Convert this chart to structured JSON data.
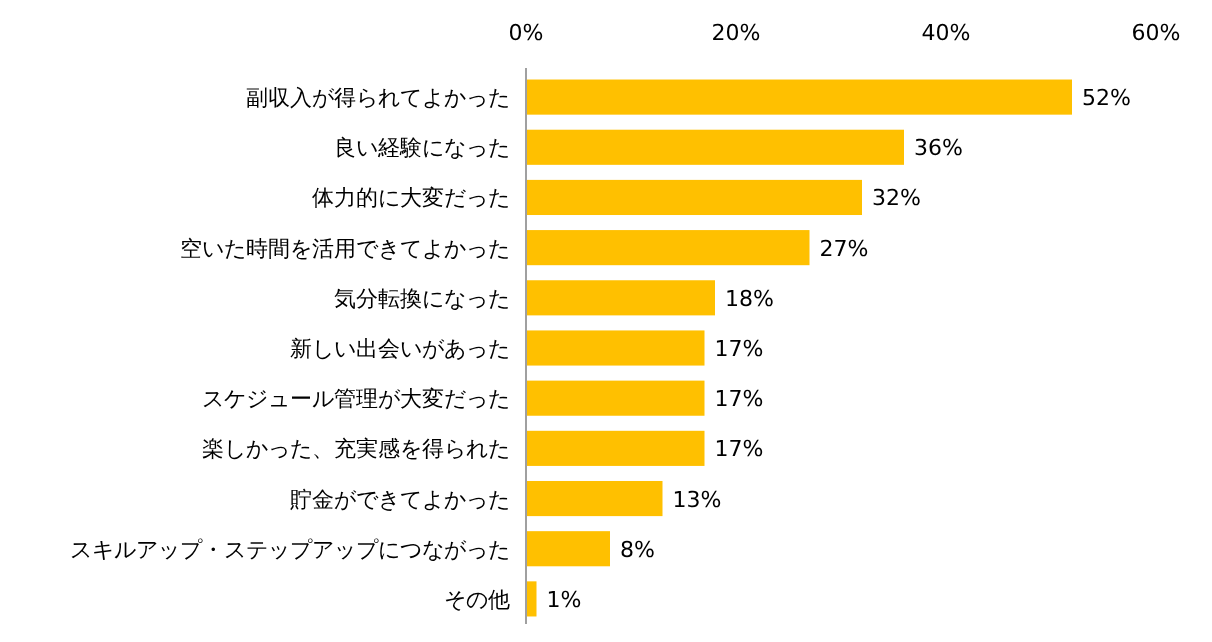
{
  "chart_data": {
    "type": "bar",
    "orientation": "horizontal",
    "categories": [
      "副収入が得られてよかった",
      "良い経験になった",
      "体力的に大変だった",
      "空いた時間を活用できてよかった",
      "気分転換になった",
      "新しい出会いがあった",
      "スケジュール管理が大変だった",
      "楽しかった、充実感を得られた",
      "貯金ができてよかった",
      "スキルアップ・ステップアップにつながった",
      "その他"
    ],
    "values": [
      52,
      36,
      32,
      27,
      18,
      17,
      17,
      17,
      13,
      8,
      1
    ],
    "value_labels": [
      "52%",
      "36%",
      "32%",
      "27%",
      "18%",
      "17%",
      "17%",
      "17%",
      "13%",
      "8%",
      "1%"
    ],
    "color": "#ffc000",
    "xlim": [
      0,
      60
    ],
    "xticks": [
      {
        "value": 0,
        "label": "0%"
      },
      {
        "value": 20,
        "label": "20%"
      },
      {
        "value": 40,
        "label": "40%"
      },
      {
        "value": 60,
        "label": "60%"
      }
    ],
    "grid": false
  }
}
